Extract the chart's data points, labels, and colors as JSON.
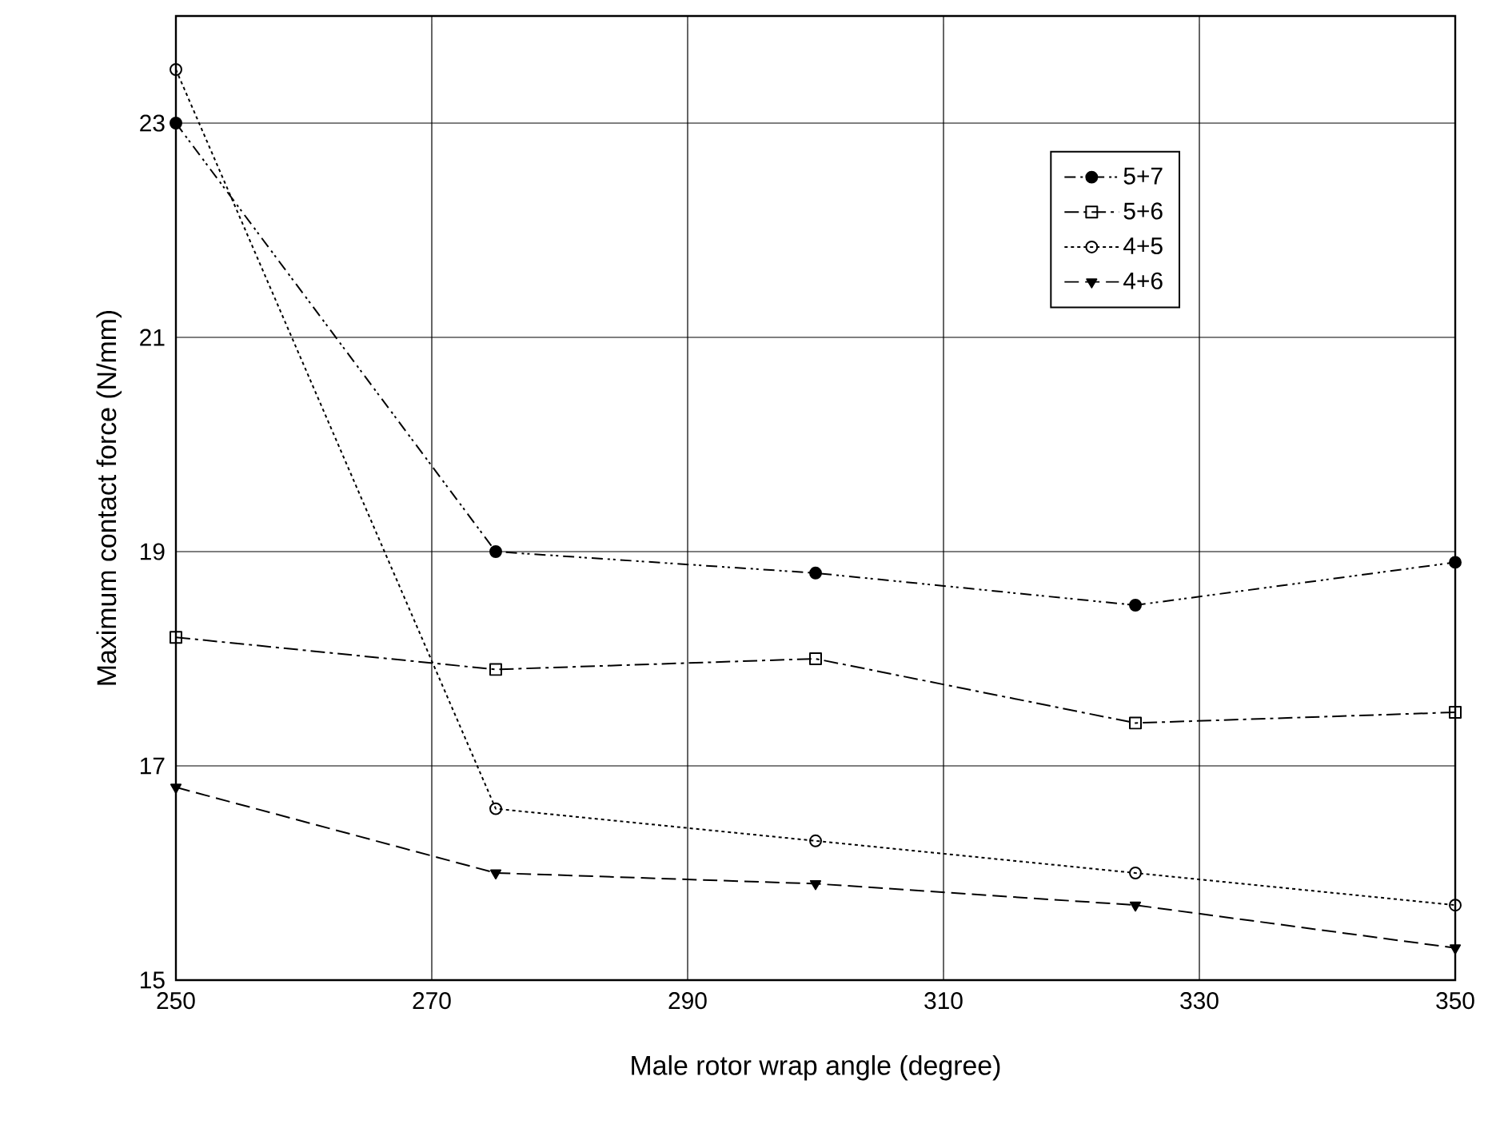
{
  "chart_data": {
    "type": "line",
    "xlabel": "Male rotor wrap angle (degree)",
    "ylabel": "Maximum contact force (N/mm)",
    "x": [
      250,
      275,
      300,
      325,
      350
    ],
    "series": [
      {
        "name": "5+7",
        "color": "#000000",
        "marker": "circle",
        "line_style": "dashdotdot",
        "values": [
          23.0,
          19.0,
          18.8,
          18.5,
          18.9
        ]
      },
      {
        "name": "5+6",
        "color": "#000000",
        "marker": "square",
        "line_style": "dashdot",
        "values": [
          18.2,
          17.9,
          18.0,
          17.4,
          17.5
        ]
      },
      {
        "name": "4+5",
        "color": "#000000",
        "marker": "circle_open",
        "line_style": "dotted",
        "values": [
          23.5,
          16.6,
          16.3,
          16.0,
          15.7
        ]
      },
      {
        "name": "4+6",
        "color": "#000000",
        "marker": "triangle_down",
        "line_style": "dashed",
        "values": [
          16.8,
          16.0,
          15.9,
          15.7,
          15.3
        ]
      }
    ],
    "xlim": [
      250,
      350
    ],
    "ylim": [
      15,
      24
    ],
    "xticks": [
      250,
      270,
      290,
      310,
      330,
      350
    ],
    "yticks": [
      15,
      17,
      19,
      21,
      23
    ],
    "grid": true,
    "legend": "top right"
  }
}
